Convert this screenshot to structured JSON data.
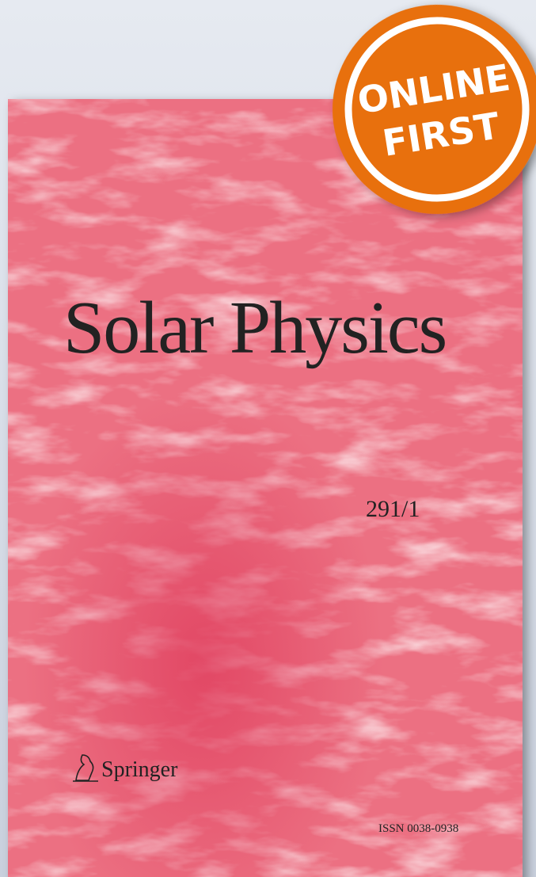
{
  "cover": {
    "title": "Solar Physics",
    "issue": "291/1",
    "publisher": "Springer",
    "issn": "ISSN 0038-0938"
  },
  "badge": {
    "lines": [
      "ONLINE",
      "FIRST"
    ]
  }
}
